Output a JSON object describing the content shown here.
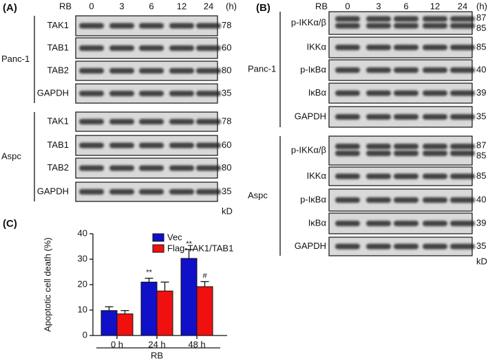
{
  "panel_a": {
    "label": "(A)",
    "treatment": "RB",
    "times": [
      0,
      3,
      6,
      12,
      24
    ],
    "unit": "(h)",
    "mw_unit": "kD",
    "groups": [
      {
        "name": "Panc-1",
        "rows": [
          {
            "protein": "TAK1",
            "mw": 78
          },
          {
            "protein": "TAB1",
            "mw": 60
          },
          {
            "protein": "TAB2",
            "mw": 80
          },
          {
            "protein": "GAPDH",
            "mw": 35
          }
        ]
      },
      {
        "name": "Aspc",
        "rows": [
          {
            "protein": "TAK1",
            "mw": 78
          },
          {
            "protein": "TAB1",
            "mw": 60
          },
          {
            "protein": "TAB2",
            "mw": 80
          },
          {
            "protein": "GAPDH",
            "mw": 35
          }
        ]
      }
    ]
  },
  "panel_b": {
    "label": "(B)",
    "treatment": "RB",
    "times": [
      0,
      3,
      6,
      12,
      24
    ],
    "unit": "(h)",
    "mw_unit": "kD",
    "groups": [
      {
        "name": "Panc-1",
        "rows": [
          {
            "protein": "p-IKKα/β",
            "mw": [
              87,
              85
            ]
          },
          {
            "protein": "IKKα",
            "mw": [
              85
            ]
          },
          {
            "protein": "p-IκBα",
            "mw": [
              40
            ]
          },
          {
            "protein": "IκBα",
            "mw": [
              39
            ]
          },
          {
            "protein": "GAPDH",
            "mw": [
              35
            ]
          }
        ]
      },
      {
        "name": "Aspc",
        "rows": [
          {
            "protein": "p-IKKα/β",
            "mw": [
              87,
              85
            ]
          },
          {
            "protein": "IKKα",
            "mw": [
              85
            ]
          },
          {
            "protein": "p-IκBα",
            "mw": [
              40
            ]
          },
          {
            "protein": "IκBα",
            "mw": [
              39
            ]
          },
          {
            "protein": "GAPDH",
            "mw": [
              35
            ]
          }
        ]
      }
    ]
  },
  "chart_data": {
    "type": "bar",
    "panel_label": "(C)",
    "ylabel": "Apoptotic cell death (%)",
    "xlabel": "RB",
    "categories": [
      "0 h",
      "24 h",
      "48 h"
    ],
    "series": [
      {
        "name": "Vec",
        "color": "#1010c8",
        "values": [
          9.8,
          21,
          30.3
        ],
        "errors": [
          1.5,
          1.5,
          3.5
        ],
        "annotations": [
          null,
          "**",
          "**"
        ]
      },
      {
        "name": "Flag-TAK1/TAB1",
        "color": "#f01010",
        "values": [
          8.5,
          17.5,
          19.2
        ],
        "errors": [
          1.3,
          3.5,
          2
        ],
        "annotations": [
          null,
          null,
          "#"
        ]
      }
    ],
    "ylim": [
      0,
      40
    ],
    "yticks": [
      0,
      10,
      20,
      30,
      40
    ]
  }
}
